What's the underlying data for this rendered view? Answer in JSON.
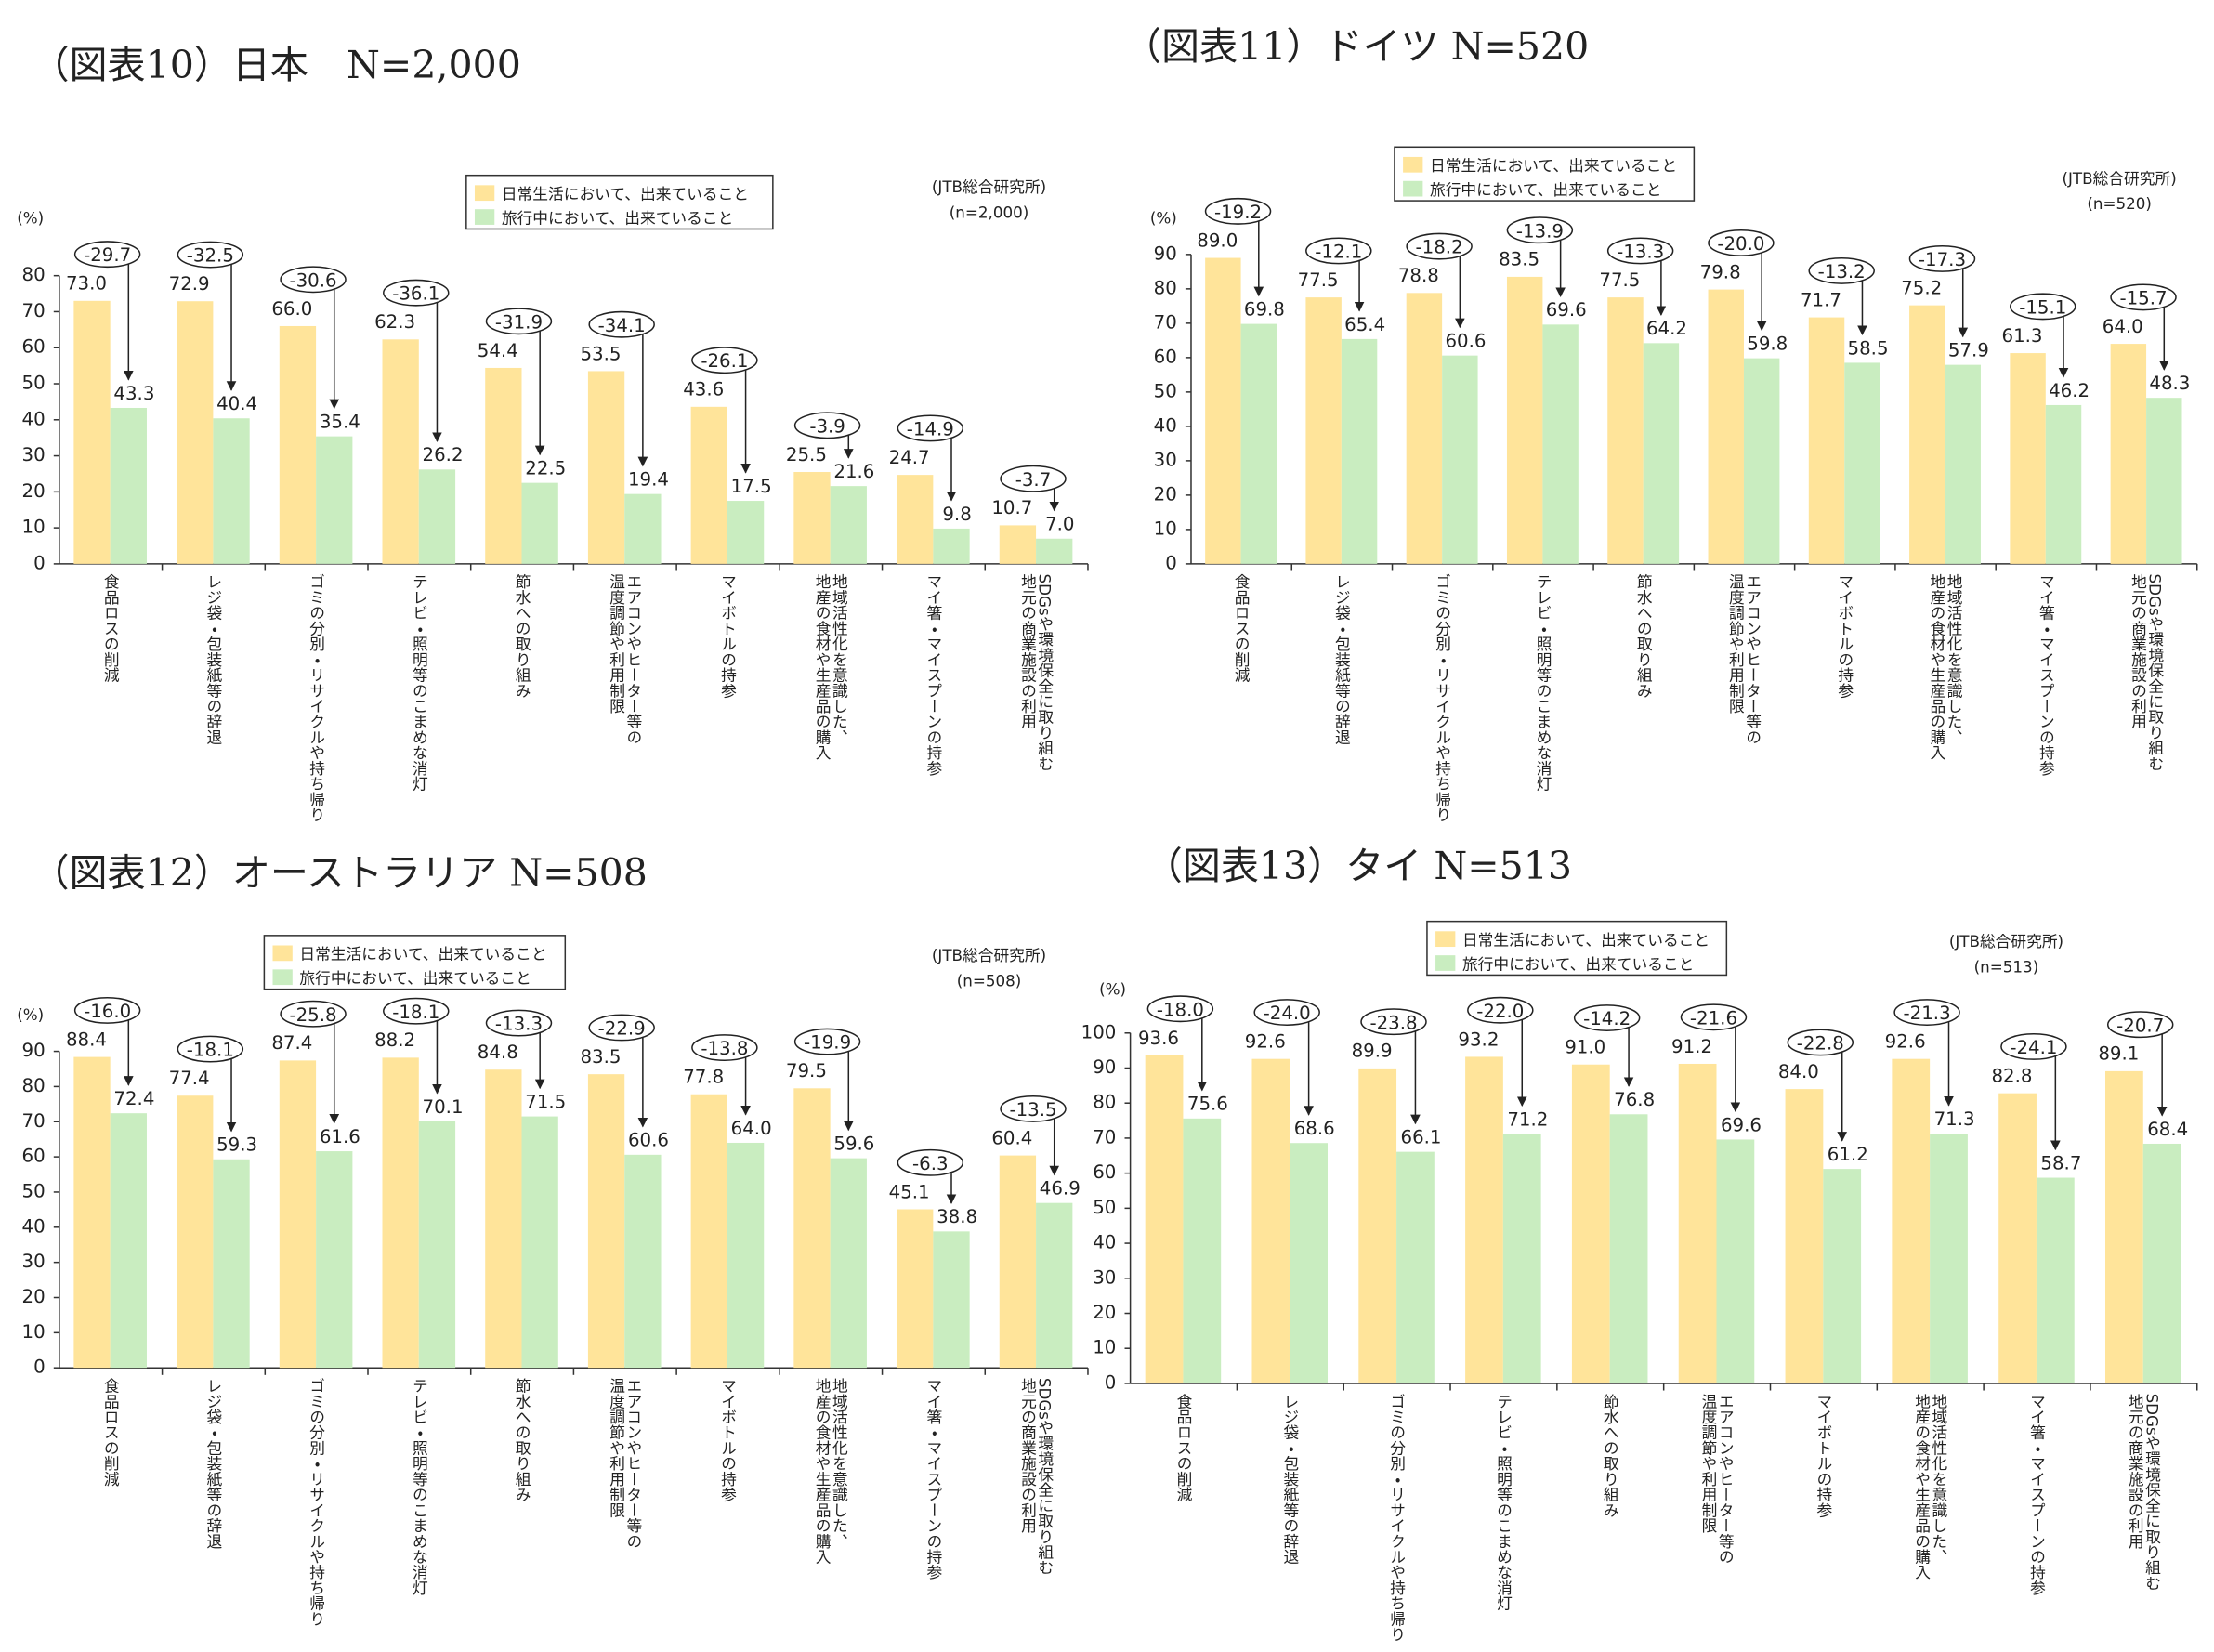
{
  "chart_data": [
    {
      "type": "bar",
      "title": "（図表10）日本　N=2,000",
      "y_axis_label": "(%)",
      "source": "(JTB総合研究所)",
      "sample": "(n=2,000)",
      "categories": [
        [
          "食品ロスの削減"
        ],
        [
          "レジ袋・包装紙等の辞退"
        ],
        [
          "ゴミの分別・リサイクルや持ち帰り"
        ],
        [
          "テレビ・照明等のこまめな消灯"
        ],
        [
          "節水への取り組み"
        ],
        [
          "エアコンやヒーター等の",
          "温度調節や利用制限"
        ],
        [
          "マイボトルの持参"
        ],
        [
          "地域活性化を意識した、",
          "地産の食材や生産品の購入"
        ],
        [
          "マイ箸・マイスプーンの持参"
        ],
        [
          "SDGsや環境保全に取り組む",
          "地元の商業施設の利用"
        ]
      ],
      "series": [
        {
          "name": "日常生活において、出来ていること",
          "color": "#ffe49a",
          "values": [
            73.0,
            72.9,
            66.0,
            62.3,
            54.4,
            53.5,
            43.6,
            25.5,
            24.7,
            10.7
          ],
          "value_labels": [
            "73.0",
            "72.9",
            "66.0",
            "62.3",
            "54.4",
            "53.5",
            "43.6",
            "25.5",
            "24.7",
            "10.7"
          ]
        },
        {
          "name": "旅行中において、出来ていること",
          "color": "#c9edc0",
          "values": [
            43.3,
            40.4,
            35.4,
            26.2,
            22.5,
            19.4,
            17.5,
            21.6,
            9.8,
            7.0
          ],
          "value_labels": [
            "43.3",
            "40.4",
            "35.4",
            "26.2",
            "22.5",
            "19.4",
            "17.5",
            "21.6",
            "9.8",
            "7.0"
          ]
        }
      ],
      "differences": {
        "values": [
          -29.7,
          -32.5,
          -30.6,
          -36.1,
          -31.9,
          -34.1,
          -26.1,
          -3.9,
          -14.9,
          -3.7
        ],
        "value_labels": [
          "-29.7",
          "-32.5",
          "-30.6",
          "-36.1",
          "-31.9",
          "-34.1",
          "-26.1",
          "-3.9",
          "-14.9",
          "-3.7"
        ]
      },
      "ylim": [
        0,
        80
      ],
      "yticks": [
        0,
        10,
        20,
        30,
        40,
        50,
        60,
        70,
        80
      ],
      "legend": "top"
    },
    {
      "type": "bar",
      "title": "（図表11）ドイツ N=520",
      "y_axis_label": "(%)",
      "source": "(JTB総合研究所)",
      "sample": "(n=520)",
      "categories": [
        [
          "食品ロスの削減"
        ],
        [
          "レジ袋・包装紙等の辞退"
        ],
        [
          "ゴミの分別・リサイクルや持ち帰り"
        ],
        [
          "テレビ・照明等のこまめな消灯"
        ],
        [
          "節水への取り組み"
        ],
        [
          "エアコンやヒーター等の",
          "温度調節や利用制限"
        ],
        [
          "マイボトルの持参"
        ],
        [
          "地域活性化を意識した、",
          "地産の食材や生産品の購入"
        ],
        [
          "マイ箸・マイスプーンの持参"
        ],
        [
          "SDGsや環境保全に取り組む",
          "地元の商業施設の利用"
        ]
      ],
      "series": [
        {
          "name": "日常生活において、出来ていること",
          "color": "#ffe49a",
          "values": [
            89.0,
            77.5,
            78.8,
            83.5,
            77.5,
            79.8,
            71.7,
            75.2,
            61.3,
            64.0
          ],
          "value_labels": [
            "89.0",
            "77.5",
            "78.8",
            "83.5",
            "77.5",
            "79.8",
            "71.7",
            "75.2",
            "61.3",
            "64.0"
          ]
        },
        {
          "name": "旅行中において、出来ていること",
          "color": "#c9edc0",
          "values": [
            69.8,
            65.4,
            60.6,
            69.6,
            64.2,
            59.8,
            58.5,
            57.9,
            46.2,
            48.3
          ],
          "value_labels": [
            "69.8",
            "65.4",
            "60.6",
            "69.6",
            "64.2",
            "59.8",
            "58.5",
            "57.9",
            "46.2",
            "48.3"
          ]
        }
      ],
      "differences": {
        "values": [
          -19.2,
          -12.1,
          -18.2,
          -13.9,
          -13.3,
          -20.0,
          -13.2,
          -17.3,
          -15.1,
          -15.7
        ],
        "value_labels": [
          "-19.2",
          "-12.1",
          "-18.2",
          "-13.9",
          "-13.3",
          "-20.0",
          "-13.2",
          "-17.3",
          "-15.1",
          "-15.7"
        ]
      },
      "ylim": [
        0,
        90
      ],
      "yticks": [
        0,
        10,
        20,
        30,
        40,
        50,
        60,
        70,
        80,
        90
      ],
      "legend": "top"
    },
    {
      "type": "bar",
      "title": "（図表12）オーストラリア N=508",
      "y_axis_label": "(%)",
      "source": "(JTB総合研究所)",
      "sample": "(n=508)",
      "categories": [
        [
          "食品ロスの削減"
        ],
        [
          "レジ袋・包装紙等の辞退"
        ],
        [
          "ゴミの分別・リサイクルや持ち帰り"
        ],
        [
          "テレビ・照明等のこまめな消灯"
        ],
        [
          "節水への取り組み"
        ],
        [
          "エアコンやヒーター等の",
          "温度調節や利用制限"
        ],
        [
          "マイボトルの持参"
        ],
        [
          "地域活性化を意識した、",
          "地産の食材や生産品の購入"
        ],
        [
          "マイ箸・マイスプーンの持参"
        ],
        [
          "SDGsや環境保全に取り組む",
          "地元の商業施設の利用"
        ]
      ],
      "series": [
        {
          "name": "日常生活において、出来ていること",
          "color": "#ffe49a",
          "values": [
            88.4,
            77.4,
            87.4,
            88.2,
            84.8,
            83.5,
            77.8,
            79.5,
            45.1,
            60.4
          ],
          "value_labels": [
            "88.4",
            "77.4",
            "87.4",
            "88.2",
            "84.8",
            "83.5",
            "77.8",
            "79.5",
            "45.1",
            "60.4"
          ]
        },
        {
          "name": "旅行中において、出来ていること",
          "color": "#c9edc0",
          "values": [
            72.4,
            59.3,
            61.6,
            70.1,
            71.5,
            60.6,
            64.0,
            59.6,
            38.8,
            46.9
          ],
          "value_labels": [
            "72.4",
            "59.3",
            "61.6",
            "70.1",
            "71.5",
            "60.6",
            "64.0",
            "59.6",
            "38.8",
            "46.9"
          ]
        }
      ],
      "differences": {
        "values": [
          -16.0,
          -18.1,
          -25.8,
          -18.1,
          -13.3,
          -22.9,
          -13.8,
          -19.9,
          -6.3,
          -13.5
        ],
        "value_labels": [
          "-16.0",
          "-18.1",
          "-25.8",
          "-18.1",
          "-13.3",
          "-22.9",
          "-13.8",
          "-19.9",
          "-6.3",
          "-13.5"
        ]
      },
      "ylim": [
        0,
        90
      ],
      "yticks": [
        0,
        10,
        20,
        30,
        40,
        50,
        60,
        70,
        80,
        90
      ],
      "legend": "top"
    },
    {
      "type": "bar",
      "title": "（図表13）タイ N=513",
      "y_axis_label": "(%)",
      "source": "(JTB総合研究所)",
      "sample": "(n=513)",
      "categories": [
        [
          "食品ロスの削減"
        ],
        [
          "レジ袋・包装紙等の辞退"
        ],
        [
          "ゴミの分別・リサイクルや持ち帰り"
        ],
        [
          "テレビ・照明等のこまめな消灯"
        ],
        [
          "節水への取り組み"
        ],
        [
          "エアコンやヒーター等の",
          "温度調節や利用制限"
        ],
        [
          "マイボトルの持参"
        ],
        [
          "地域活性化を意識した、",
          "地産の食材や生産品の購入"
        ],
        [
          "マイ箸・マイスプーンの持参"
        ],
        [
          "SDGsや環境保全に取り組む",
          "地元の商業施設の利用"
        ]
      ],
      "series": [
        {
          "name": "日常生活において、出来ていること",
          "color": "#ffe49a",
          "values": [
            93.6,
            92.6,
            89.9,
            93.2,
            91.0,
            91.2,
            84.0,
            92.6,
            82.8,
            89.1
          ],
          "value_labels": [
            "93.6",
            "92.6",
            "89.9",
            "93.2",
            "91.0",
            "91.2",
            "84.0",
            "92.6",
            "82.8",
            "89.1"
          ]
        },
        {
          "name": "旅行中において、出来ていること",
          "color": "#c9edc0",
          "values": [
            75.6,
            68.6,
            66.1,
            71.2,
            76.8,
            69.6,
            61.2,
            71.3,
            58.7,
            68.4
          ],
          "value_labels": [
            "75.6",
            "68.6",
            "66.1",
            "71.2",
            "76.8",
            "69.6",
            "61.2",
            "71.3",
            "58.7",
            "68.4"
          ]
        }
      ],
      "differences": {
        "values": [
          -18.0,
          -24.0,
          -23.8,
          -22.0,
          -14.2,
          -21.6,
          -22.8,
          -21.3,
          -24.1,
          -20.7
        ],
        "value_labels": [
          "-18.0",
          "-24.0",
          "-23.8",
          "-22.0",
          "-14.2",
          "-21.6",
          "-22.8",
          "-21.3",
          "-24.1",
          "-20.7"
        ]
      },
      "ylim": [
        0,
        100
      ],
      "yticks": [
        0,
        10,
        20,
        30,
        40,
        50,
        60,
        70,
        80,
        90,
        100
      ],
      "legend": "top"
    }
  ]
}
